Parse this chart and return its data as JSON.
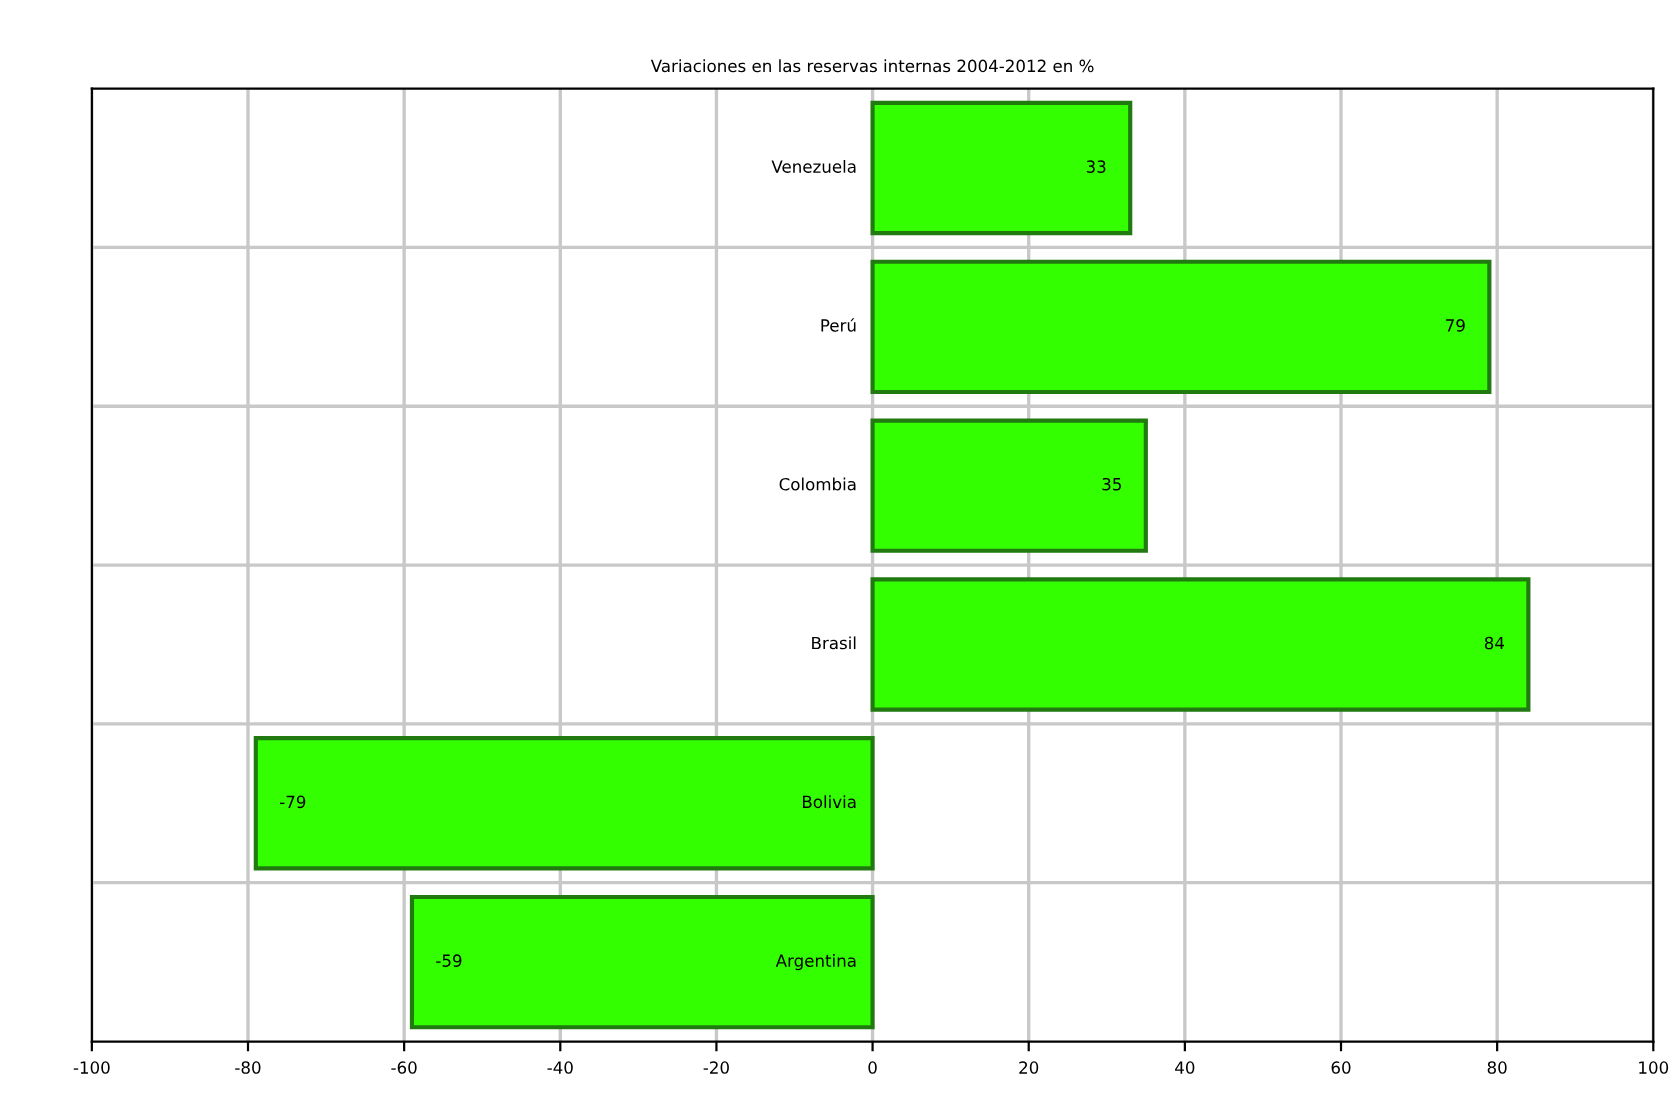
{
  "chart_data": {
    "type": "bar",
    "orientation": "horizontal",
    "title": "Variaciones en las reservas internas 2004-2012 en %",
    "categories": [
      "Venezuela",
      "Perú",
      "Colombia",
      "Brasil",
      "Bolivia",
      "Argentina"
    ],
    "values": [
      33,
      79,
      35,
      84,
      -79,
      -59
    ],
    "color": "#33ff00",
    "xlim": [
      -100,
      100
    ],
    "xticks": [
      -100,
      -80,
      -60,
      -40,
      -20,
      0,
      20,
      40,
      60,
      80,
      100
    ],
    "grid": true,
    "data_labels": true
  }
}
